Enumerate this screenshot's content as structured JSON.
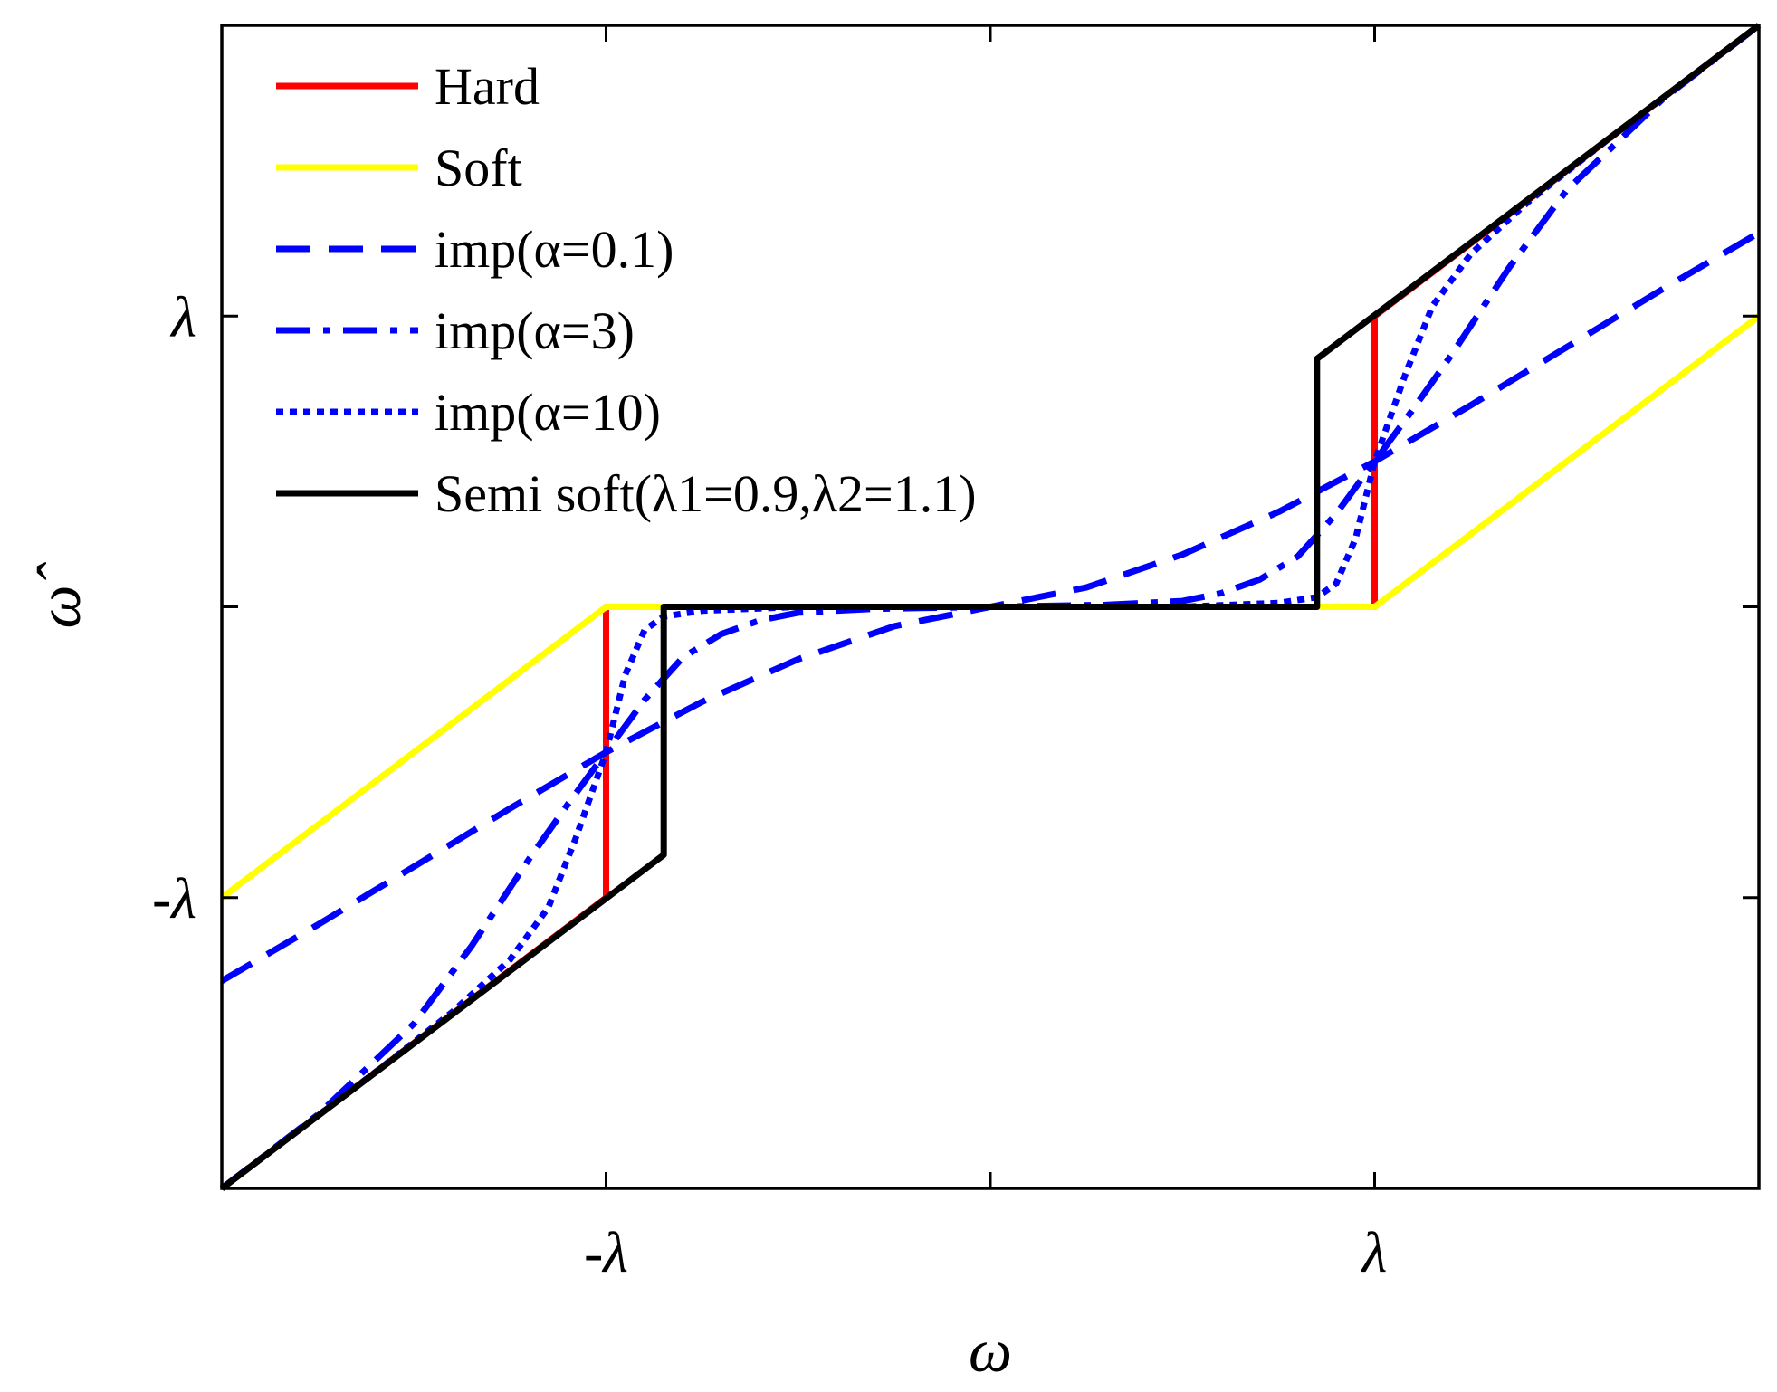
{
  "chart_data": {
    "type": "line",
    "title": "",
    "xlabel": "ω",
    "ylabel": "ω̂",
    "xlim": [
      -2,
      2
    ],
    "ylim": [
      -3,
      3
    ],
    "xticks": [
      {
        "value": -1,
        "label": "-λ"
      },
      {
        "value": 0,
        "label": ""
      },
      {
        "value": 1,
        "label": "λ"
      }
    ],
    "yticks": [
      {
        "value": -1.5,
        "label": "-λ"
      },
      {
        "value": 0,
        "label": ""
      },
      {
        "value": 1.5,
        "label": "λ"
      }
    ],
    "grid": false,
    "legend_position": "top-left",
    "series": [
      {
        "name": "Hard",
        "color": "#ff0000",
        "dash": "solid",
        "points": [
          [
            -2,
            -3
          ],
          [
            -1,
            -1.5
          ],
          [
            -1,
            0
          ],
          [
            1,
            0
          ],
          [
            1,
            1.5
          ],
          [
            2,
            3
          ]
        ]
      },
      {
        "name": "Soft",
        "color": "#ffff00",
        "dash": "solid",
        "points": [
          [
            -2,
            -1.5
          ],
          [
            -1,
            0
          ],
          [
            1,
            0
          ],
          [
            2,
            1.5
          ]
        ]
      },
      {
        "name": "imp(α=0.1)",
        "color": "#0000ff",
        "dash": "dash",
        "points": [
          [
            -2,
            -1.93
          ],
          [
            -1.75,
            -1.64
          ],
          [
            -1.5,
            -1.34
          ],
          [
            -1.25,
            -1.04
          ],
          [
            -1.0,
            -0.75
          ],
          [
            -0.75,
            -0.49
          ],
          [
            -0.5,
            -0.27
          ],
          [
            -0.25,
            -0.1
          ],
          [
            0,
            0
          ],
          [
            0.25,
            0.1
          ],
          [
            0.5,
            0.27
          ],
          [
            0.75,
            0.49
          ],
          [
            1.0,
            0.75
          ],
          [
            1.25,
            1.04
          ],
          [
            1.5,
            1.34
          ],
          [
            1.75,
            1.64
          ],
          [
            2,
            1.93
          ]
        ]
      },
      {
        "name": "imp(α=3)",
        "color": "#0000ff",
        "dash": "dashdot",
        "points": [
          [
            -2,
            -3
          ],
          [
            -1.75,
            -2.62
          ],
          [
            -1.5,
            -2.15
          ],
          [
            -1.35,
            -1.75
          ],
          [
            -1.2,
            -1.3
          ],
          [
            -1.1,
            -1.02
          ],
          [
            -1.0,
            -0.75
          ],
          [
            -0.9,
            -0.48
          ],
          [
            -0.8,
            -0.26
          ],
          [
            -0.7,
            -0.14
          ],
          [
            -0.6,
            -0.07
          ],
          [
            -0.5,
            -0.03
          ],
          [
            -0.3,
            -0.01
          ],
          [
            0,
            0
          ],
          [
            0.3,
            0.01
          ],
          [
            0.5,
            0.03
          ],
          [
            0.6,
            0.07
          ],
          [
            0.7,
            0.14
          ],
          [
            0.8,
            0.26
          ],
          [
            0.9,
            0.48
          ],
          [
            1.0,
            0.75
          ],
          [
            1.1,
            1.02
          ],
          [
            1.2,
            1.3
          ],
          [
            1.35,
            1.75
          ],
          [
            1.5,
            2.15
          ],
          [
            1.75,
            2.62
          ],
          [
            2,
            3
          ]
        ]
      },
      {
        "name": "imp(α=10)",
        "color": "#0000ff",
        "dash": "dot",
        "points": [
          [
            -2,
            -3
          ],
          [
            -1.6,
            -2.4
          ],
          [
            -1.4,
            -2.09
          ],
          [
            -1.25,
            -1.82
          ],
          [
            -1.15,
            -1.55
          ],
          [
            -1.08,
            -1.2
          ],
          [
            -1.0,
            -0.75
          ],
          [
            -0.95,
            -0.35
          ],
          [
            -0.9,
            -0.12
          ],
          [
            -0.85,
            -0.05
          ],
          [
            -0.75,
            -0.02
          ],
          [
            -0.5,
            0
          ],
          [
            0.5,
            0
          ],
          [
            0.75,
            0.02
          ],
          [
            0.85,
            0.05
          ],
          [
            0.9,
            0.12
          ],
          [
            0.95,
            0.35
          ],
          [
            1.0,
            0.75
          ],
          [
            1.08,
            1.2
          ],
          [
            1.15,
            1.55
          ],
          [
            1.25,
            1.82
          ],
          [
            1.4,
            2.09
          ],
          [
            1.6,
            2.4
          ],
          [
            2,
            3
          ]
        ]
      },
      {
        "name": "Semi soft(λ1=0.9,λ2=1.1)",
        "color": "#000000",
        "dash": "solid",
        "points": [
          [
            -2,
            -3
          ],
          [
            -0.85,
            -1.28
          ],
          [
            -0.85,
            0
          ],
          [
            0.85,
            0
          ],
          [
            0.85,
            1.28
          ],
          [
            2,
            3
          ]
        ]
      }
    ]
  }
}
